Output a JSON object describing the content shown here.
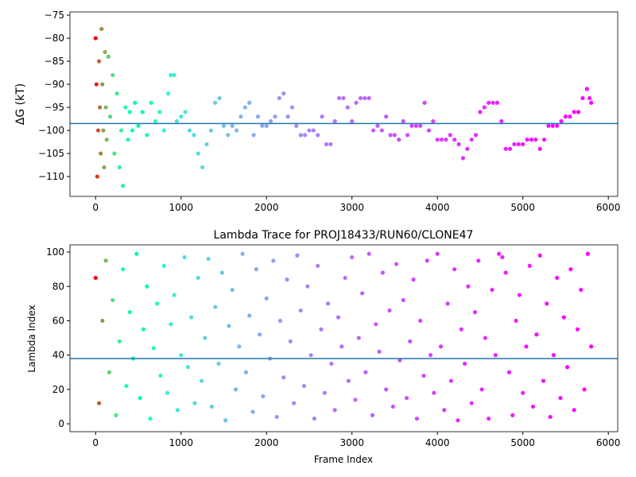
{
  "chart_data": [
    {
      "type": "scatter",
      "ylabel": "ΔG (kT)",
      "colormap": "rainbow_r",
      "x": [
        0,
        10,
        20,
        30,
        40,
        50,
        60,
        70,
        80,
        90,
        100,
        110,
        120,
        130,
        150,
        170,
        200,
        220,
        250,
        280,
        300,
        320,
        350,
        380,
        400,
        430,
        460,
        500,
        550,
        600,
        650,
        700,
        750,
        800,
        850,
        880,
        920,
        950,
        1000,
        1050,
        1100,
        1150,
        1200,
        1250,
        1300,
        1350,
        1400,
        1450,
        1500,
        1550,
        1600,
        1650,
        1700,
        1750,
        1800,
        1850,
        1900,
        1950,
        2000,
        2050,
        2100,
        2150,
        2200,
        2250,
        2300,
        2350,
        2400,
        2450,
        2500,
        2550,
        2600,
        2650,
        2700,
        2750,
        2800,
        2850,
        2900,
        2950,
        3000,
        3050,
        3100,
        3150,
        3200,
        3250,
        3300,
        3350,
        3400,
        3450,
        3500,
        3550,
        3600,
        3650,
        3700,
        3750,
        3800,
        3850,
        3900,
        3950,
        4000,
        4050,
        4100,
        4150,
        4200,
        4250,
        4300,
        4350,
        4400,
        4450,
        4500,
        4550,
        4600,
        4650,
        4700,
        4750,
        4800,
        4850,
        4900,
        4950,
        5000,
        5050,
        5100,
        5150,
        5200,
        5250,
        5300,
        5350,
        5400,
        5450,
        5500,
        5550,
        5600,
        5650,
        5700,
        5750,
        5780,
        5800
      ],
      "values": [
        -80,
        -90,
        -110,
        -100,
        -85,
        -95,
        -105,
        -78,
        -90,
        -100,
        -108,
        -83,
        -95,
        -102,
        -84,
        -97,
        -88,
        -105,
        -92,
        -108,
        -100,
        -112,
        -95,
        -102,
        -96,
        -100,
        -94,
        -99,
        -96,
        -101,
        -94,
        -98,
        -96,
        -100,
        -92,
        -88,
        -88,
        -98,
        -97,
        -96,
        -100,
        -101,
        -105,
        -108,
        -103,
        -100,
        -94,
        -93,
        -99,
        -101,
        -99,
        -100,
        -97,
        -95,
        -94,
        -101,
        -97,
        -99,
        -99,
        -98,
        -97,
        -93,
        -92,
        -97,
        -95,
        -99,
        -101,
        -101,
        -100,
        -100,
        -101,
        -97,
        -103,
        -103,
        -98,
        -93,
        -93,
        -95,
        -98,
        -94,
        -93,
        -93,
        -93,
        -100,
        -99,
        -100,
        -97,
        -101,
        -101,
        -102,
        -98,
        -101,
        -99,
        -99,
        -99,
        -94,
        -100,
        -98,
        -102,
        -102,
        -102,
        -101,
        -102,
        -103,
        -106,
        -104,
        -102,
        -101,
        -96,
        -95,
        -94,
        -94,
        -94,
        -98,
        -104,
        -104,
        -103,
        -103,
        -103,
        -102,
        -102,
        -102,
        -104,
        -102,
        -99,
        -99,
        -99,
        -98,
        -97,
        -97,
        -96,
        -96,
        -93,
        -91,
        -93,
        -94
      ],
      "hline": -98.5,
      "xlim": [
        -300,
        6110
      ],
      "xticks": [
        0,
        1000,
        2000,
        3000,
        4000,
        5000,
        6000
      ],
      "ylim": [
        -114.3,
        -74.3
      ],
      "yticks": [
        {
          "value": -110,
          "label": "−110"
        },
        {
          "value": -105,
          "label": "−105"
        },
        {
          "value": -100,
          "label": "−100"
        },
        {
          "value": -95,
          "label": "−95"
        },
        {
          "value": -90,
          "label": "−90"
        },
        {
          "value": -85,
          "label": "−85"
        },
        {
          "value": -80,
          "label": "−80"
        },
        {
          "value": -75,
          "label": "−75"
        }
      ]
    },
    {
      "type": "scatter",
      "title": "Lambda Trace for PROJ18433/RUN60/CLONE47",
      "xlabel": "Frame Index",
      "ylabel": "Lambda Index",
      "colormap": "rainbow_r",
      "x": [
        0,
        40,
        80,
        120,
        160,
        200,
        240,
        280,
        320,
        360,
        400,
        440,
        480,
        520,
        560,
        600,
        640,
        680,
        720,
        760,
        800,
        840,
        880,
        920,
        960,
        1000,
        1040,
        1080,
        1120,
        1160,
        1200,
        1240,
        1280,
        1320,
        1360,
        1400,
        1440,
        1480,
        1520,
        1560,
        1600,
        1640,
        1680,
        1720,
        1760,
        1800,
        1840,
        1880,
        1920,
        1960,
        2000,
        2040,
        2080,
        2120,
        2160,
        2200,
        2240,
        2280,
        2320,
        2360,
        2400,
        2440,
        2480,
        2520,
        2560,
        2600,
        2640,
        2680,
        2720,
        2760,
        2800,
        2840,
        2880,
        2920,
        2960,
        3000,
        3040,
        3080,
        3120,
        3160,
        3200,
        3240,
        3280,
        3320,
        3360,
        3400,
        3440,
        3480,
        3520,
        3560,
        3600,
        3640,
        3680,
        3720,
        3760,
        3800,
        3840,
        3880,
        3920,
        3960,
        4000,
        4040,
        4080,
        4120,
        4160,
        4200,
        4240,
        4280,
        4320,
        4360,
        4400,
        4440,
        4480,
        4520,
        4560,
        4600,
        4640,
        4680,
        4720,
        4760,
        4800,
        4840,
        4880,
        4920,
        4960,
        5000,
        5040,
        5080,
        5120,
        5160,
        5200,
        5240,
        5280,
        5320,
        5360,
        5400,
        5440,
        5480,
        5520,
        5560,
        5600,
        5640,
        5680,
        5720,
        5760,
        5800
      ],
      "values": [
        85,
        12,
        60,
        95,
        30,
        72,
        5,
        48,
        90,
        22,
        65,
        38,
        99,
        15,
        55,
        80,
        3,
        44,
        70,
        28,
        92,
        18,
        58,
        75,
        8,
        40,
        97,
        33,
        62,
        12,
        85,
        25,
        50,
        96,
        10,
        68,
        35,
        88,
        2,
        57,
        78,
        20,
        45,
        99,
        30,
        63,
        7,
        90,
        52,
        16,
        73,
        38,
        95,
        4,
        60,
        27,
        84,
        48,
        12,
        98,
        66,
        22,
        80,
        40,
        3,
        92,
        55,
        18,
        70,
        35,
        8,
        62,
        45,
        85,
        25,
        97,
        14,
        50,
        76,
        30,
        99,
        5,
        58,
        42,
        88,
        20,
        66,
        10,
        93,
        37,
        72,
        15,
        48,
        84,
        3,
        60,
        28,
        95,
        40,
        18,
        99,
        45,
        8,
        70,
        25,
        90,
        2,
        55,
        35,
        80,
        12,
        65,
        95,
        20,
        50,
        3,
        78,
        40,
        99,
        97,
        88,
        30,
        5,
        60,
        75,
        18,
        45,
        92,
        10,
        52,
        98,
        25,
        70,
        4,
        40,
        85,
        15,
        62,
        33,
        90,
        8,
        55,
        78,
        20,
        99,
        45
      ],
      "hline": 38,
      "xlim": [
        -300,
        6110
      ],
      "xticks": [
        0,
        1000,
        2000,
        3000,
        4000,
        5000,
        6000
      ],
      "ylim": [
        -4.6,
        104.2
      ],
      "yticks": [
        0,
        20,
        40,
        60,
        80,
        100
      ]
    }
  ]
}
